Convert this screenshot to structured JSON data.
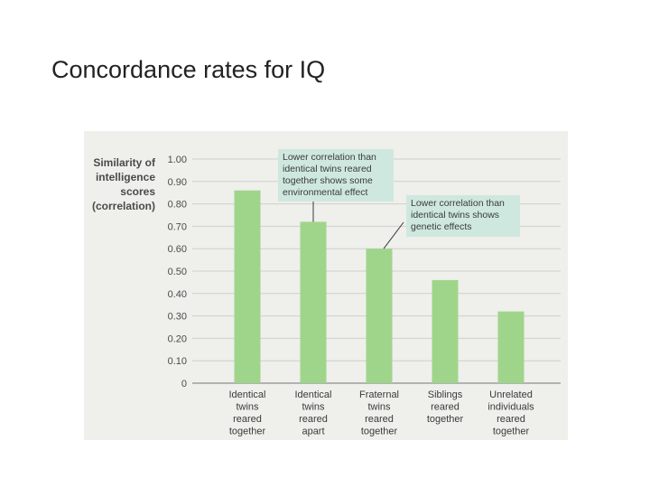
{
  "slide": {
    "title": "Concordance rates for IQ"
  },
  "chart_data": {
    "type": "bar",
    "ylabel_lines": [
      "Similarity of",
      "intelligence",
      "scores",
      "(correlation)"
    ],
    "ylim": [
      0,
      1.0
    ],
    "yticks": [
      {
        "value": 0,
        "label": "0"
      },
      {
        "value": 0.1,
        "label": "0.10"
      },
      {
        "value": 0.2,
        "label": "0.20"
      },
      {
        "value": 0.3,
        "label": "0.30"
      },
      {
        "value": 0.4,
        "label": "0.40"
      },
      {
        "value": 0.5,
        "label": "0.50"
      },
      {
        "value": 0.6,
        "label": "0.60"
      },
      {
        "value": 0.7,
        "label": "0.70"
      },
      {
        "value": 0.8,
        "label": "0.80"
      },
      {
        "value": 0.9,
        "label": "0.90"
      },
      {
        "value": 1.0,
        "label": "1.00"
      }
    ],
    "categories": [
      [
        "Identical",
        "twins",
        "reared",
        "together"
      ],
      [
        "Identical",
        "twins",
        "reared",
        "apart"
      ],
      [
        "Fraternal",
        "twins",
        "reared",
        "together"
      ],
      [
        "Siblings",
        "reared",
        "together"
      ],
      [
        "Unrelated",
        "individuals",
        "reared",
        "together"
      ]
    ],
    "values": [
      0.86,
      0.72,
      0.6,
      0.46,
      0.32
    ],
    "grid": true,
    "bar_color": "#9fd58b",
    "annotations": [
      {
        "target_index": 1,
        "lines": [
          "Lower correlation than",
          "identical twins reared",
          "together shows some",
          "environmental effect"
        ]
      },
      {
        "target_index": 2,
        "lines": [
          "Lower correlation than",
          "identical twins shows",
          "genetic effects"
        ]
      }
    ]
  }
}
